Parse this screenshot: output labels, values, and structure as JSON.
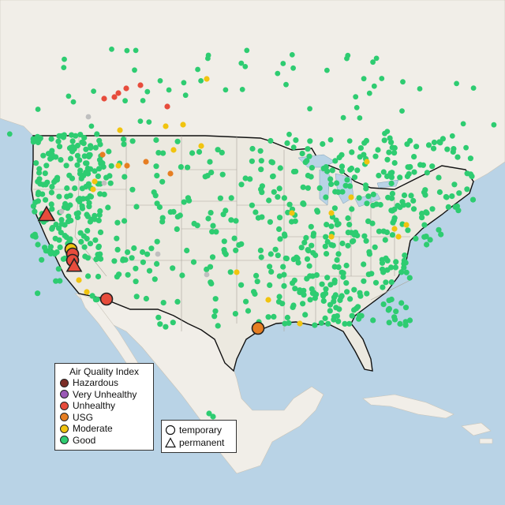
{
  "map": {
    "colors": {
      "ocean": "#b9d3e6",
      "land_us": "#ece9e0",
      "land_other": "#f1eee8",
      "good": "#2ecc71",
      "moderate": "#f1c40f",
      "usg": "#e67e22",
      "unhealthy": "#e74c3c",
      "very_unhealthy": "#9b59b6",
      "hazardous": "#7b2d26",
      "inactive": "#bfbfbf"
    }
  },
  "legend": {
    "title": "Air Quality Index",
    "items": [
      {
        "label": "Hazardous",
        "color": "#7b2d26"
      },
      {
        "label": "Very Unhealthy",
        "color": "#9b59b6"
      },
      {
        "label": "Unhealthy",
        "color": "#e74c3c"
      },
      {
        "label": "USG",
        "color": "#e67e22"
      },
      {
        "label": "Moderate",
        "color": "#f1c40f"
      },
      {
        "label": "Good",
        "color": "#2ecc71"
      }
    ]
  },
  "monitor_types": {
    "items": [
      {
        "label": "temporary",
        "icon": "circle-icon"
      },
      {
        "label": "permanent",
        "icon": "triangle-icon"
      }
    ]
  }
}
